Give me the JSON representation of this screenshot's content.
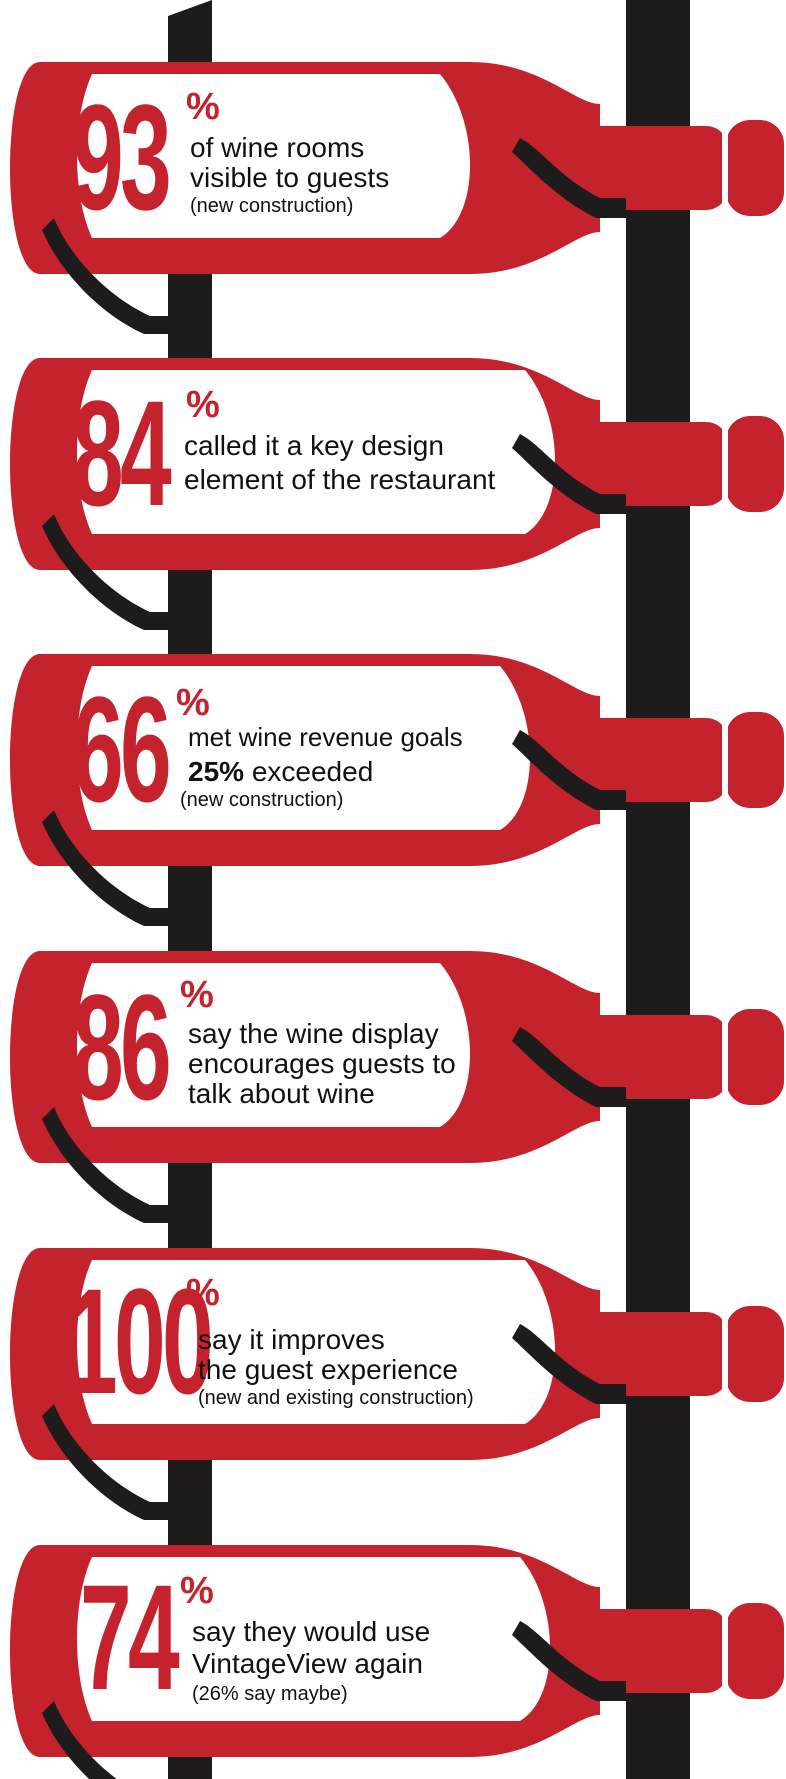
{
  "colors": {
    "bottle_red": "#c4222c",
    "rack_black": "#1d1b1b",
    "label_white": "#ffffff",
    "text_dark": "#111111"
  },
  "stats": [
    {
      "number": "93",
      "percent": "%",
      "lines": [
        "of wine rooms",
        "visible to guests"
      ],
      "note": "(new construction)"
    },
    {
      "number": "84",
      "percent": "%",
      "lines": [
        "called it a key design",
        "element of the restaurant"
      ],
      "note": ""
    },
    {
      "number": "66",
      "percent": "%",
      "lines": [
        "met wine revenue goals"
      ],
      "emph": "25%",
      "emph_rest": " exceeded",
      "note": "(new construction)"
    },
    {
      "number": "86",
      "percent": "%",
      "lines": [
        "say the wine display",
        "encourages guests to",
        "talk about wine"
      ],
      "note": ""
    },
    {
      "number": "100",
      "percent": "%",
      "lines": [
        "say it improves",
        "the guest experience"
      ],
      "note": "(new and existing construction)"
    },
    {
      "number": "74",
      "percent": "%",
      "lines": [
        "say they would use",
        "VintageView again"
      ],
      "note": "(26% say maybe)"
    }
  ]
}
